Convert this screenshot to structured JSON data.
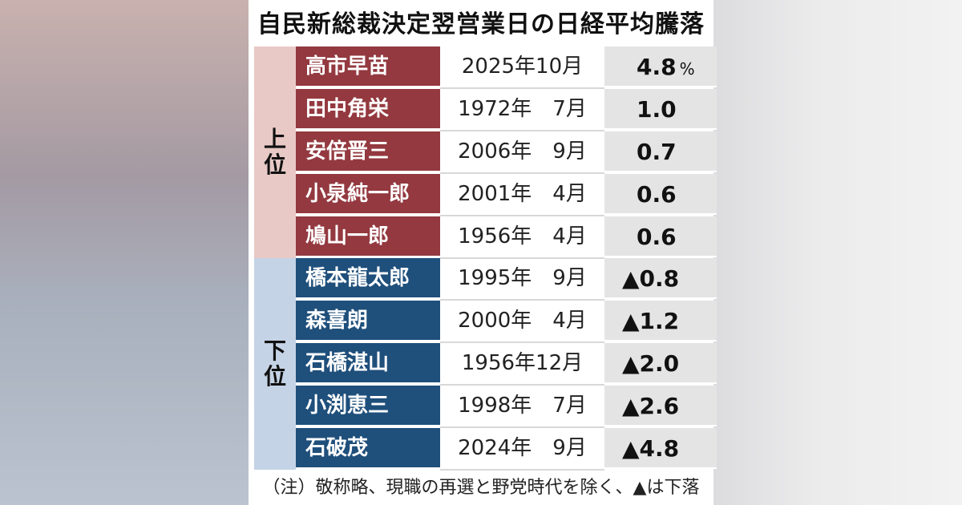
{
  "chart_data": {
    "type": "table",
    "title": "自民新総裁決定翌営業日の日経平均騰落",
    "group_labels": {
      "top": [
        "上",
        "位"
      ],
      "bottom": [
        "下",
        "位"
      ]
    },
    "unit": "%",
    "rows_top": [
      {
        "name": "高市早苗",
        "date": "2025年10月",
        "value_text": "4.8",
        "value": 4.8
      },
      {
        "name": "田中角栄",
        "date": "1972年　7月",
        "value_text": "1.0",
        "value": 1.0
      },
      {
        "name": "安倍晋三",
        "date": "2006年　9月",
        "value_text": "0.7",
        "value": 0.7
      },
      {
        "name": "小泉純一郎",
        "date": "2001年　4月",
        "value_text": "0.6",
        "value": 0.6
      },
      {
        "name": "鳩山一郎",
        "date": "1956年　4月",
        "value_text": "0.6",
        "value": 0.6
      }
    ],
    "rows_bottom": [
      {
        "name": "橋本龍太郎",
        "date": "1995年　9月",
        "value_text": "▲0.8",
        "value": -0.8
      },
      {
        "name": "森喜朗",
        "date": "2000年　4月",
        "value_text": "▲1.2",
        "value": -1.2
      },
      {
        "name": "石橋湛山",
        "date": "1956年12月",
        "value_text": "▲2.0",
        "value": -2.0
      },
      {
        "name": "小渕恵三",
        "date": "1998年　7月",
        "value_text": "▲2.6",
        "value": -2.6
      },
      {
        "name": "石破茂",
        "date": "2024年　9月",
        "value_text": "▲4.8",
        "value": -4.8
      }
    ],
    "note": "（注）敬称略、現職の再選と野党時代を除く、▲は下落"
  }
}
